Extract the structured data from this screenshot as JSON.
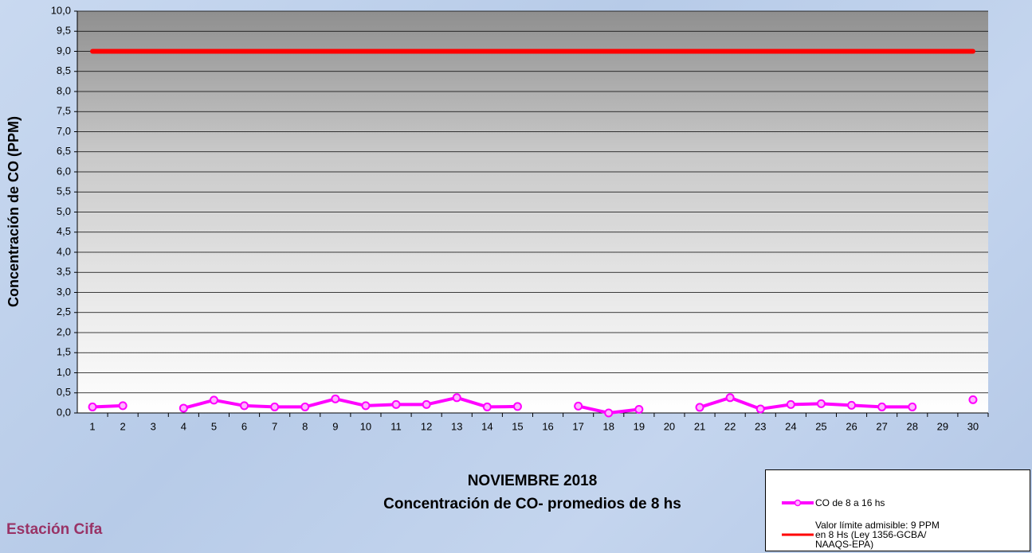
{
  "chart_data": {
    "type": "line",
    "title": "NOVIEMBRE 2018",
    "subtitle": "Concentración de CO- promedios de 8 hs",
    "annotation": "Estación Cifa",
    "y_label": "Concentración de CO (PPM)",
    "categories": [
      "1",
      "2",
      "3",
      "4",
      "5",
      "6",
      "7",
      "8",
      "9",
      "10",
      "11",
      "12",
      "13",
      "14",
      "15",
      "16",
      "17",
      "18",
      "19",
      "20",
      "21",
      "22",
      "23",
      "24",
      "25",
      "26",
      "27",
      "28",
      "29",
      "30"
    ],
    "series": [
      {
        "name": "CO de 8 a 16 hs",
        "color": "#ff00ff",
        "values": [
          0.15,
          0.18,
          null,
          0.12,
          0.32,
          0.18,
          0.15,
          0.15,
          0.35,
          0.18,
          0.21,
          0.21,
          0.38,
          0.15,
          0.16,
          null,
          0.17,
          0.0,
          0.09,
          null,
          0.14,
          0.38,
          0.1,
          0.21,
          0.23,
          0.19,
          0.15,
          0.15,
          null,
          0.33
        ]
      },
      {
        "name": "Valor límite admisible: 9 PPM en 8 Hs (Ley 1356-GCBA/ NAAQS-EPA)",
        "color": "#ff0000",
        "values": [
          9,
          9,
          9,
          9,
          9,
          9,
          9,
          9,
          9,
          9,
          9,
          9,
          9,
          9,
          9,
          9,
          9,
          9,
          9,
          9,
          9,
          9,
          9,
          9,
          9,
          9,
          9,
          9,
          9,
          9
        ]
      }
    ],
    "ylim": [
      0,
      10
    ],
    "yticks": [
      {
        "value": 0,
        "label": "0,0"
      },
      {
        "value": 0.5,
        "label": "0,5"
      },
      {
        "value": 1,
        "label": "1,0"
      },
      {
        "value": 1.5,
        "label": "1,5"
      },
      {
        "value": 2,
        "label": "2,0"
      },
      {
        "value": 2.5,
        "label": "2,5"
      },
      {
        "value": 3,
        "label": "3,0"
      },
      {
        "value": 3.5,
        "label": "3,5"
      },
      {
        "value": 4,
        "label": "4,0"
      },
      {
        "value": 4.5,
        "label": "4,5"
      },
      {
        "value": 5,
        "label": "5,0"
      },
      {
        "value": 5.5,
        "label": "5,5"
      },
      {
        "value": 6,
        "label": "6,0"
      },
      {
        "value": 6.5,
        "label": "6,5"
      },
      {
        "value": 7,
        "label": "7,0"
      },
      {
        "value": 7.5,
        "label": "7,5"
      },
      {
        "value": 8,
        "label": "8,0"
      },
      {
        "value": 8.5,
        "label": "8,5"
      },
      {
        "value": 9,
        "label": "9,0"
      },
      {
        "value": 9.5,
        "label": "9,5"
      },
      {
        "value": 10,
        "label": "10,0"
      }
    ],
    "grid": true
  }
}
